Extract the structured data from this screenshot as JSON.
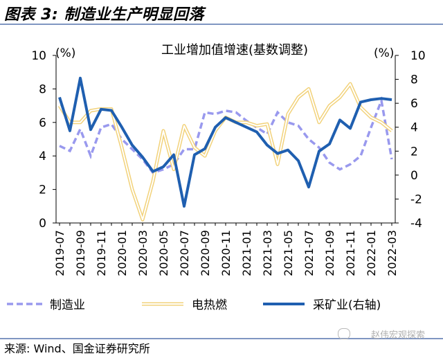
{
  "header": {
    "title": "图表 3:  制造业生产明显回落"
  },
  "footer": {
    "source": "来源:  Wind、国金证券研究所",
    "watermark": "赵伟宏观探索"
  },
  "colors": {
    "manufacturing": "#9999ee",
    "utilities": "#f2d27a",
    "mining": "#1f5fb0",
    "rule": "#7f96c2"
  },
  "chart_data": {
    "type": "line",
    "title": "工业增加值增速(基数调整)",
    "left_axis": {
      "unit_label": "(%)",
      "ylim": [
        0,
        10
      ],
      "ticks": [
        "0",
        "2",
        "4",
        "6",
        "8",
        "10"
      ]
    },
    "right_axis": {
      "unit_label": "(%)",
      "ylim": [
        -4,
        10
      ],
      "ticks": [
        "-4",
        "-2",
        "0",
        "2",
        "4",
        "6",
        "8",
        "10"
      ]
    },
    "x": [
      "2019-07",
      "2019-08",
      "2019-09",
      "2019-10",
      "2019-11",
      "2019-12",
      "2020-01",
      "2020-02",
      "2020-03",
      "2020-04",
      "2020-05",
      "2020-06",
      "2020-07",
      "2020-08",
      "2020-09",
      "2020-10",
      "2020-11",
      "2020-12",
      "2021-01",
      "2021-02",
      "2021-03",
      "2021-04",
      "2021-05",
      "2021-06",
      "2021-07",
      "2021-08",
      "2021-09",
      "2021-10",
      "2021-11",
      "2021-12",
      "2022-01",
      "2022-02",
      "2022-03"
    ],
    "x_tick_labels": [
      "2019-07",
      "2019-09",
      "2019-11",
      "2020-01",
      "2020-03",
      "2020-05",
      "2020-07",
      "2020-09",
      "2020-11",
      "2021-01",
      "2021-03",
      "2021-05",
      "2021-07",
      "2021-09",
      "2021-11",
      "2022-01",
      "2022-03"
    ],
    "grid": false,
    "legend_position": "bottom",
    "series": [
      {
        "name": "制造业",
        "axis": "left",
        "style": "dashed",
        "values": [
          4.6,
          4.3,
          5.6,
          4.0,
          5.7,
          5.9,
          5.0,
          4.4,
          3.8,
          3.0,
          3.2,
          3.5,
          4.4,
          4.4,
          6.6,
          6.5,
          6.7,
          6.6,
          6.1,
          5.7,
          5.3,
          6.6,
          6.0,
          5.8,
          5.0,
          4.5,
          3.6,
          3.2,
          3.5,
          4.0,
          5.7,
          7.3,
          3.8
        ]
      },
      {
        "name": "电热燃",
        "axis": "left",
        "style": "double",
        "values": [
          7.0,
          6.0,
          6.0,
          6.7,
          6.8,
          6.8,
          4.5,
          2.0,
          0.2,
          2.5,
          5.5,
          3.2,
          5.8,
          4.5,
          4.0,
          5.5,
          6.3,
          6.0,
          6.0,
          5.8,
          5.9,
          3.5,
          6.5,
          7.5,
          8.0,
          6.0,
          7.0,
          7.5,
          8.3,
          6.9,
          6.3,
          6.0,
          5.5
        ]
      },
      {
        "name": "采矿业(右轴)",
        "axis": "right",
        "style": "solid",
        "values": [
          6.5,
          3.7,
          8.1,
          3.8,
          5.5,
          5.4,
          4.0,
          2.5,
          1.5,
          0.3,
          0.7,
          1.7,
          -2.6,
          1.7,
          2.2,
          4.0,
          4.8,
          4.4,
          4.0,
          3.6,
          2.5,
          1.8,
          2.1,
          1.2,
          -1.0,
          2.0,
          2.6,
          4.6,
          3.9,
          6.1,
          6.3,
          6.4,
          6.3
        ]
      }
    ]
  }
}
